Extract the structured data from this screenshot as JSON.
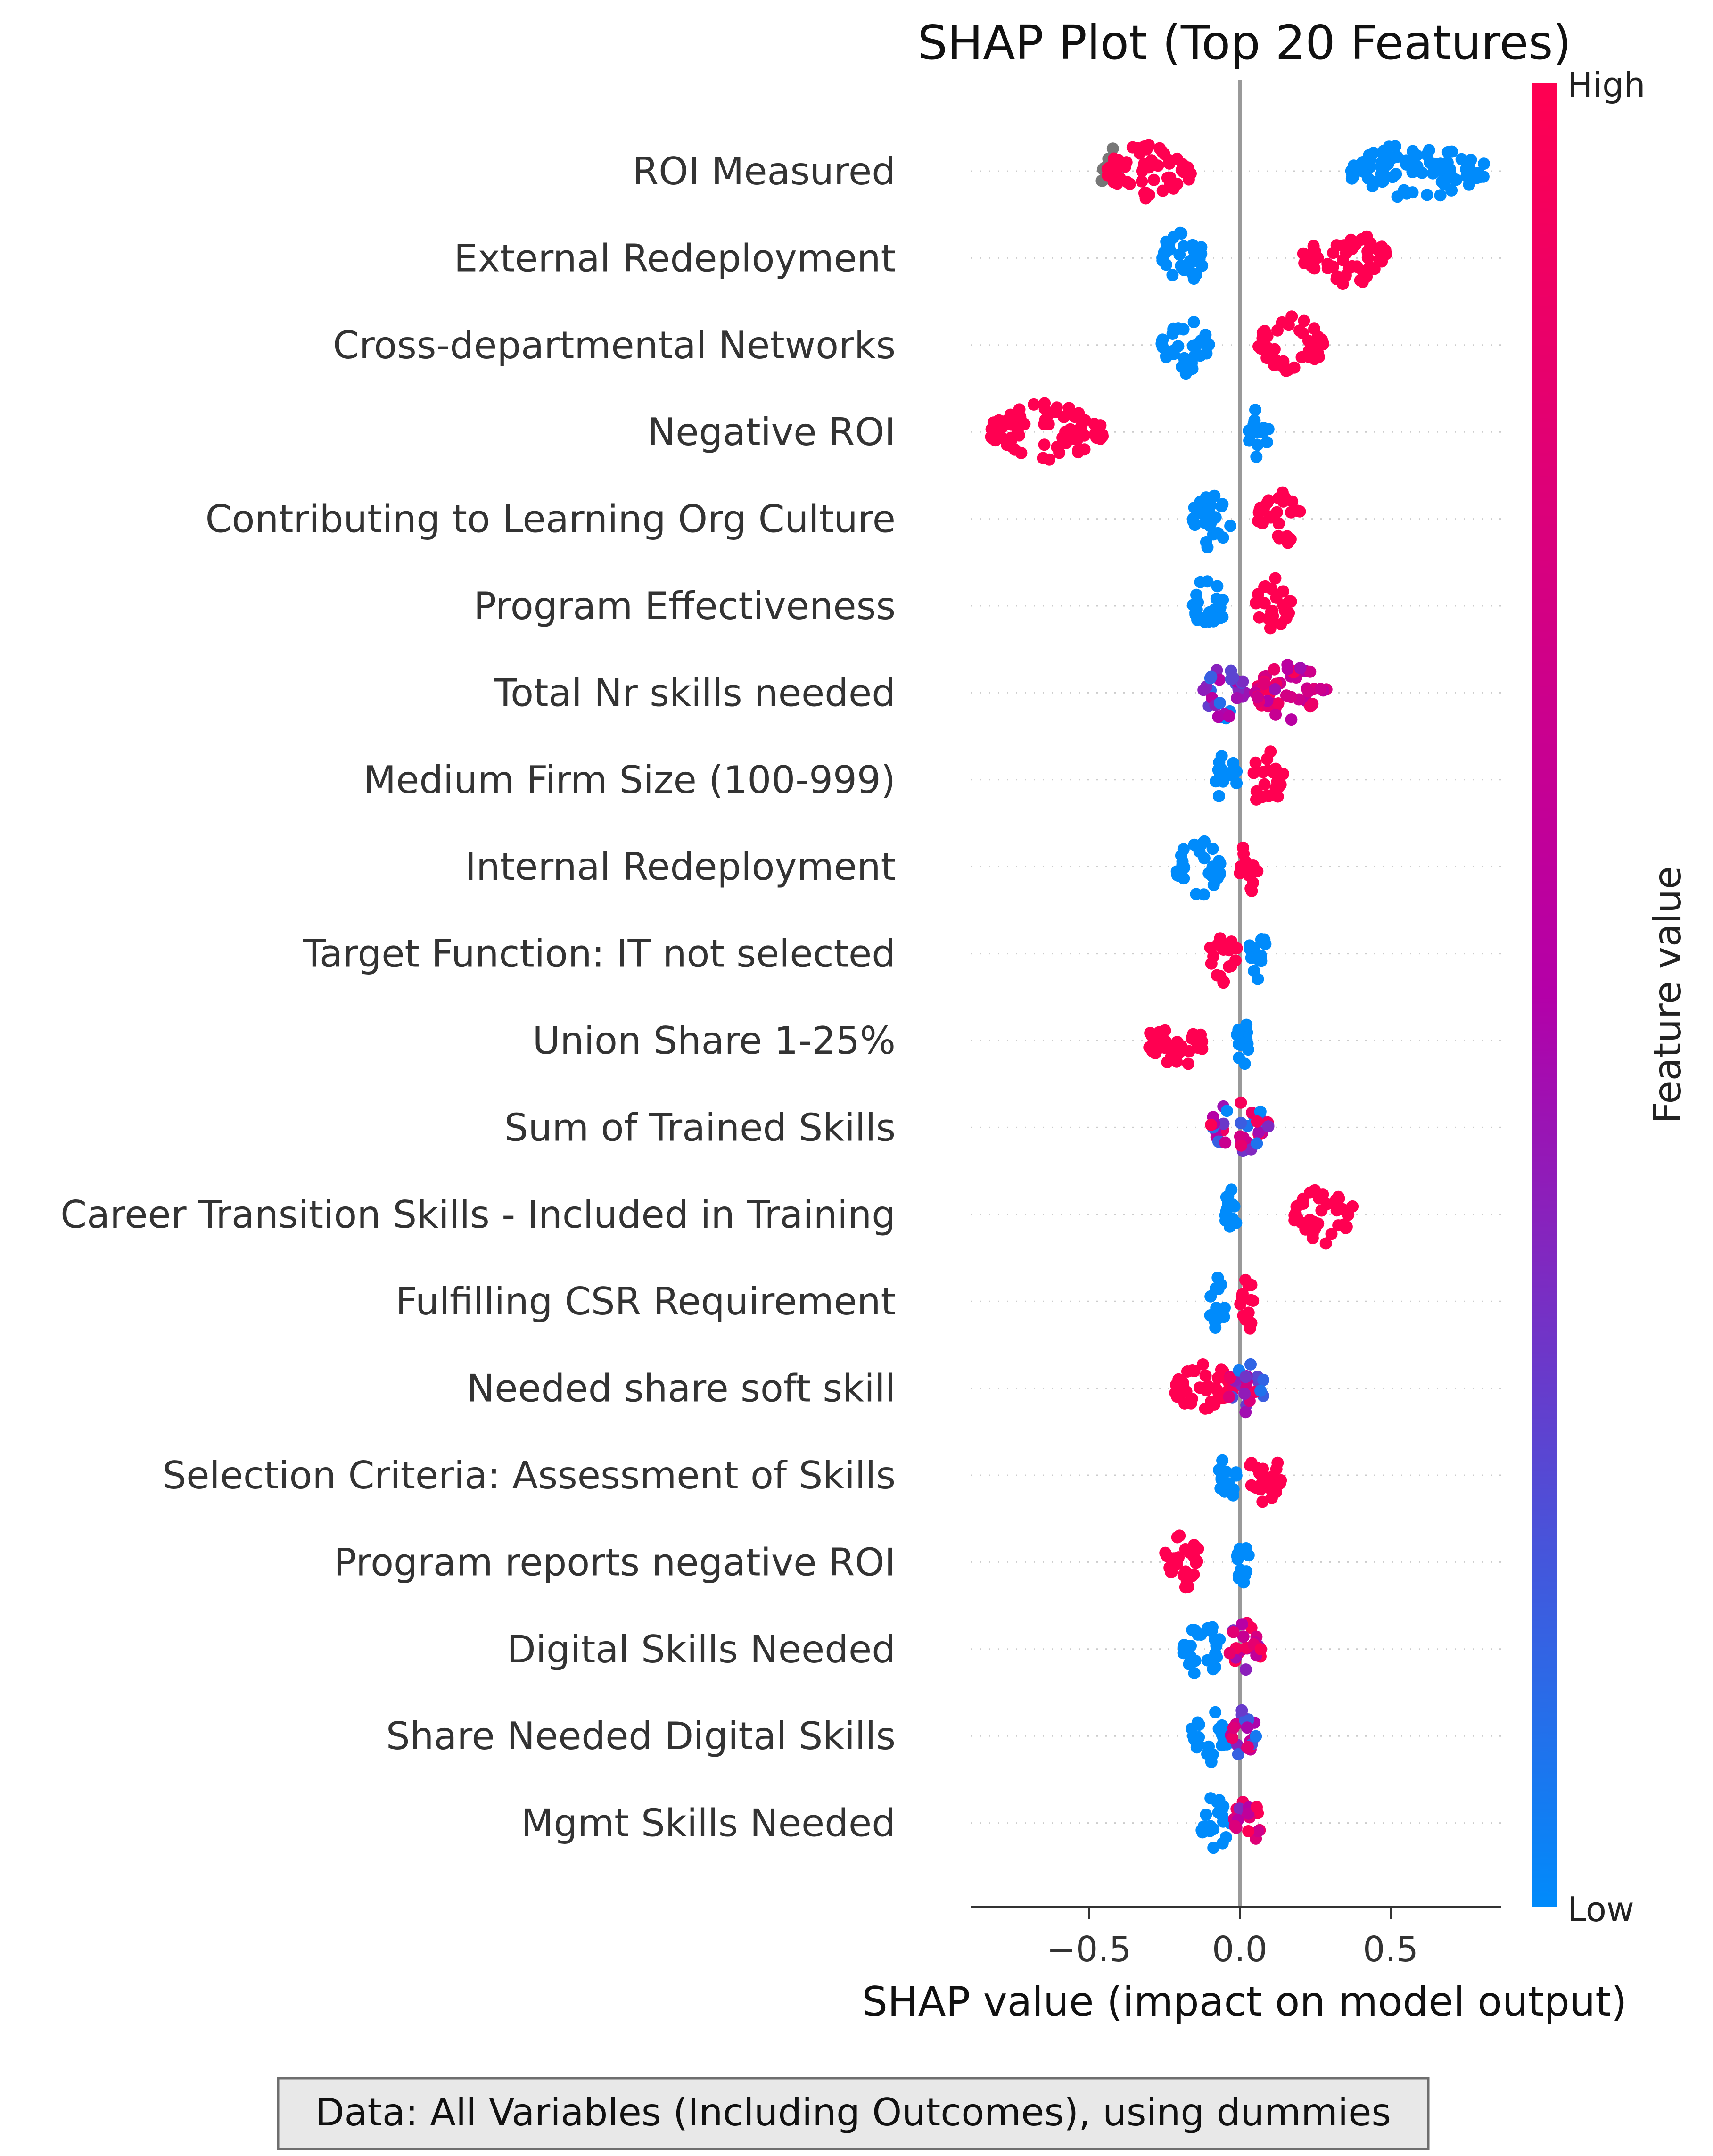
{
  "chart_data": {
    "type": "scatter",
    "subtype": "shap-beeswarm",
    "title": "SHAP Plot (Top 20 Features)",
    "xlabel": "SHAP value (impact on model output)",
    "x_ticks": [
      "−0.5",
      "0.0",
      "0.5"
    ],
    "x_tick_values": [
      -0.5,
      0.0,
      0.5
    ],
    "xlim": [
      -0.9,
      0.87
    ],
    "colorbar": {
      "title": "Feature value",
      "high_label": "High",
      "low_label": "Low",
      "high_color": "#ff0051",
      "low_color": "#008bfb",
      "mid_color": "#b400a8",
      "missing_color": "#777777"
    },
    "note": "Data: All Variables (Including Outcomes), using dummies",
    "features": [
      {
        "name": "ROI Measured",
        "groups": [
          {
            "range": [
              -0.46,
              -0.4
            ],
            "value": "missing"
          },
          {
            "range": [
              -0.44,
              -0.16
            ],
            "value": "high"
          },
          {
            "range": [
              0.37,
              0.81
            ],
            "value": "low"
          }
        ]
      },
      {
        "name": "External Redeployment",
        "groups": [
          {
            "range": [
              -0.27,
              -0.12
            ],
            "value": "low"
          },
          {
            "range": [
              0.21,
              0.49
            ],
            "value": "high"
          }
        ]
      },
      {
        "name": "Cross-departmental Networks",
        "groups": [
          {
            "range": [
              -0.26,
              -0.1
            ],
            "value": "low"
          },
          {
            "range": [
              0.06,
              0.28
            ],
            "value": "high"
          }
        ]
      },
      {
        "name": "Negative ROI",
        "groups": [
          {
            "range": [
              -0.83,
              -0.45
            ],
            "value": "high"
          },
          {
            "range": [
              0.03,
              0.1
            ],
            "value": "low"
          }
        ]
      },
      {
        "name": "Contributing to Learning Org Culture",
        "groups": [
          {
            "range": [
              -0.17,
              -0.03
            ],
            "value": "low"
          },
          {
            "range": [
              0.06,
              0.2
            ],
            "value": "high"
          }
        ]
      },
      {
        "name": "Program Effectiveness",
        "groups": [
          {
            "range": [
              -0.16,
              -0.05
            ],
            "value": "low"
          },
          {
            "range": [
              0.05,
              0.17
            ],
            "value": "high"
          }
        ]
      },
      {
        "name": "Total Nr skills needed",
        "groups": [
          {
            "range": [
              -0.12,
              0.02
            ],
            "value": "low-mid"
          },
          {
            "range": [
              0.05,
              0.29
            ],
            "value": "mid-high"
          }
        ]
      },
      {
        "name": "Medium Firm Size (100-999)",
        "groups": [
          {
            "range": [
              -0.08,
              -0.01
            ],
            "value": "low"
          },
          {
            "range": [
              0.03,
              0.15
            ],
            "value": "high"
          }
        ]
      },
      {
        "name": "Internal Redeployment",
        "groups": [
          {
            "range": [
              -0.21,
              -0.06
            ],
            "value": "low"
          },
          {
            "range": [
              0.0,
              0.06
            ],
            "value": "high"
          }
        ]
      },
      {
        "name": "Target Function: IT not selected",
        "groups": [
          {
            "range": [
              -0.1,
              -0.01
            ],
            "value": "high"
          },
          {
            "range": [
              0.03,
              0.09
            ],
            "value": "low"
          }
        ]
      },
      {
        "name": "Union Share 1-25%",
        "groups": [
          {
            "range": [
              -0.3,
              -0.12
            ],
            "value": "high"
          },
          {
            "range": [
              -0.01,
              0.03
            ],
            "value": "low"
          }
        ]
      },
      {
        "name": "Sum of Trained Skills",
        "groups": [
          {
            "range": [
              -0.1,
              0.1
            ],
            "value": "mixed"
          }
        ]
      },
      {
        "name": "Career Transition Skills - Included in Training",
        "groups": [
          {
            "range": [
              -0.05,
              -0.01
            ],
            "value": "low"
          },
          {
            "range": [
              0.18,
              0.38
            ],
            "value": "high"
          }
        ]
      },
      {
        "name": "Fulfilling CSR Requirement",
        "groups": [
          {
            "range": [
              -0.11,
              -0.04
            ],
            "value": "low"
          },
          {
            "range": [
              0.0,
              0.06
            ],
            "value": "high"
          }
        ]
      },
      {
        "name": "Needed share soft skill",
        "groups": [
          {
            "range": [
              -0.22,
              -0.02
            ],
            "value": "high"
          },
          {
            "range": [
              -0.04,
              0.08
            ],
            "value": "mixed"
          }
        ]
      },
      {
        "name": "Selection Criteria: Assessment of Skills",
        "groups": [
          {
            "range": [
              -0.07,
              -0.01
            ],
            "value": "low"
          },
          {
            "range": [
              0.03,
              0.14
            ],
            "value": "high"
          }
        ]
      },
      {
        "name": "Program reports negative ROI",
        "groups": [
          {
            "range": [
              -0.25,
              -0.12
            ],
            "value": "high"
          },
          {
            "range": [
              -0.01,
              0.03
            ],
            "value": "low"
          }
        ]
      },
      {
        "name": "Digital Skills Needed",
        "groups": [
          {
            "range": [
              -0.19,
              -0.06
            ],
            "value": "low"
          },
          {
            "range": [
              -0.04,
              0.07
            ],
            "value": "mixed-high"
          }
        ]
      },
      {
        "name": "Share Needed Digital Skills",
        "groups": [
          {
            "range": [
              -0.16,
              -0.04
            ],
            "value": "low"
          },
          {
            "range": [
              -0.03,
              0.07
            ],
            "value": "mixed"
          }
        ]
      },
      {
        "name": "Mgmt Skills Needed",
        "groups": [
          {
            "range": [
              -0.13,
              -0.03
            ],
            "value": "low"
          },
          {
            "range": [
              -0.02,
              0.07
            ],
            "value": "mixed-high"
          }
        ]
      }
    ]
  }
}
